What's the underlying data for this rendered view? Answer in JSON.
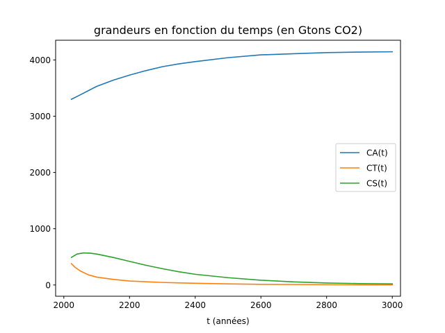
{
  "chart_data": {
    "type": "line",
    "title": "grandeurs en fonction du temps (en Gtons CO2)",
    "xlabel": "t (années)",
    "ylabel": "",
    "xlim": [
      1975,
      3025
    ],
    "ylim": [
      -200,
      4350
    ],
    "xticks": [
      2000,
      2200,
      2400,
      2600,
      2800,
      3000
    ],
    "yticks": [
      0,
      1000,
      2000,
      3000,
      4000
    ],
    "grid": false,
    "legend_position": "center-right",
    "series": [
      {
        "name": "CA(t)",
        "color": "#1f77b4",
        "x": [
          2023,
          2050,
          2100,
          2150,
          2200,
          2250,
          2300,
          2350,
          2400,
          2500,
          2600,
          2700,
          2800,
          2900,
          3000
        ],
        "y": [
          3300,
          3380,
          3530,
          3640,
          3730,
          3810,
          3880,
          3930,
          3970,
          4040,
          4090,
          4110,
          4130,
          4140,
          4145
        ]
      },
      {
        "name": "CT(t)",
        "color": "#ff7f0e",
        "x": [
          2023,
          2035,
          2050,
          2075,
          2100,
          2150,
          2200,
          2300,
          2400,
          2500,
          2600,
          2700,
          2800,
          2900,
          3000
        ],
        "y": [
          380,
          310,
          250,
          180,
          140,
          100,
          70,
          45,
          30,
          20,
          12,
          8,
          5,
          3,
          2
        ]
      },
      {
        "name": "CS(t)",
        "color": "#2ca02c",
        "x": [
          2023,
          2040,
          2060,
          2080,
          2100,
          2150,
          2200,
          2250,
          2300,
          2350,
          2400,
          2500,
          2600,
          2700,
          2800,
          2900,
          3000
        ],
        "y": [
          490,
          550,
          570,
          565,
          550,
          490,
          420,
          350,
          290,
          235,
          190,
          130,
          85,
          55,
          35,
          25,
          20
        ]
      }
    ]
  }
}
